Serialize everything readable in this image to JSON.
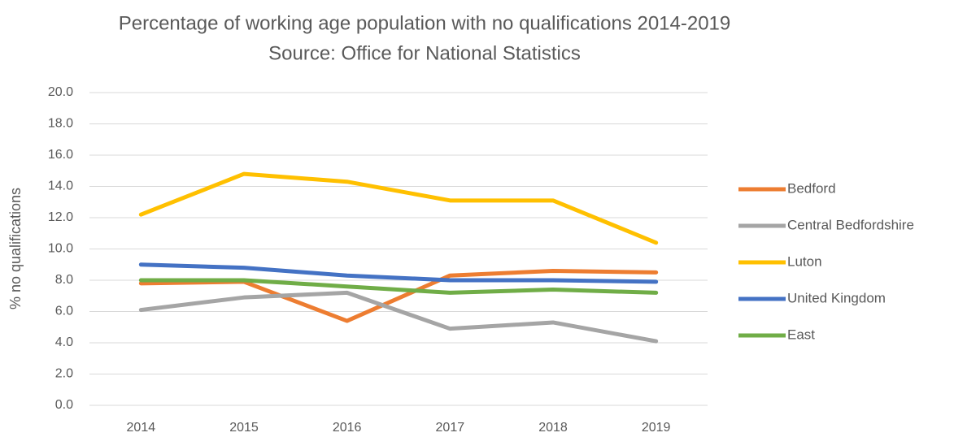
{
  "chart_data": {
    "type": "line",
    "title": "Percentage of working age population with no qualifications 2014-2019",
    "subtitle": "Source: Office for National Statistics",
    "y_label": "% no qualifications",
    "categories": [
      "2014",
      "2015",
      "2016",
      "2017",
      "2018",
      "2019"
    ],
    "series": [
      {
        "name": "Bedford",
        "color": "#ed7d31",
        "values": [
          7.8,
          7.9,
          5.4,
          8.3,
          8.6,
          8.5
        ]
      },
      {
        "name": "Central Bedfordshire",
        "color": "#a5a5a5",
        "values": [
          6.1,
          6.9,
          7.2,
          4.9,
          5.3,
          4.1
        ]
      },
      {
        "name": "Luton",
        "color": "#ffc000",
        "values": [
          12.2,
          14.8,
          14.3,
          13.1,
          13.1,
          10.4
        ]
      },
      {
        "name": "United Kingdom",
        "color": "#4472c4",
        "values": [
          9.0,
          8.8,
          8.3,
          8.0,
          8.0,
          7.9
        ]
      },
      {
        "name": "East",
        "color": "#70ad47",
        "values": [
          8.0,
          8.0,
          7.6,
          7.2,
          7.4,
          7.2
        ]
      }
    ],
    "ylim": [
      0,
      20
    ],
    "yticks": [
      {
        "value": 0,
        "label": "0.0"
      },
      {
        "value": 2,
        "label": "2.0"
      },
      {
        "value": 4,
        "label": "4.0"
      },
      {
        "value": 6,
        "label": "6.0"
      },
      {
        "value": 8,
        "label": "8.0"
      },
      {
        "value": 10,
        "label": "10.0"
      },
      {
        "value": 12,
        "label": "12.0"
      },
      {
        "value": 14,
        "label": "14.0"
      },
      {
        "value": 16,
        "label": "16.0"
      },
      {
        "value": 18,
        "label": "18.0"
      },
      {
        "value": 20,
        "label": "20.0"
      }
    ],
    "grid": true,
    "legend": "right"
  }
}
